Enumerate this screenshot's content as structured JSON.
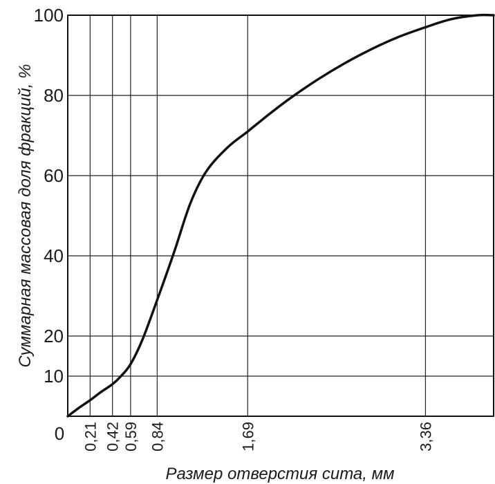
{
  "chart_data": {
    "type": "line",
    "title": "",
    "xlabel": "Размер отверстия сита, мм",
    "ylabel": "Суммарная массовая доля фракций, %",
    "x_origin_label": "0",
    "x_ticks": [
      {
        "value": 0.21,
        "label": "0,21"
      },
      {
        "value": 0.42,
        "label": "0,42"
      },
      {
        "value": 0.59,
        "label": "0,59"
      },
      {
        "value": 0.84,
        "label": "0,84"
      },
      {
        "value": 1.69,
        "label": "1,69"
      },
      {
        "value": 3.36,
        "label": "3,36"
      }
    ],
    "y_ticks": [
      {
        "value": 10,
        "label": "10"
      },
      {
        "value": 20,
        "label": "20"
      },
      {
        "value": 40,
        "label": "40"
      },
      {
        "value": 60,
        "label": "60"
      },
      {
        "value": 80,
        "label": "80"
      },
      {
        "value": 100,
        "label": "100"
      }
    ],
    "grid": true,
    "series": [
      {
        "points": [
          [
            0.0,
            0
          ],
          [
            0.1,
            2
          ],
          [
            0.21,
            4
          ],
          [
            0.31,
            6
          ],
          [
            0.42,
            8
          ],
          [
            0.5,
            10
          ],
          [
            0.59,
            13
          ],
          [
            0.7,
            19
          ],
          [
            0.84,
            29
          ],
          [
            1.0,
            41
          ],
          [
            1.15,
            53
          ],
          [
            1.3,
            61
          ],
          [
            1.5,
            67
          ],
          [
            1.69,
            71
          ],
          [
            1.9,
            75.5
          ],
          [
            2.1,
            79.5
          ],
          [
            2.35,
            84
          ],
          [
            2.6,
            88
          ],
          [
            2.85,
            91.5
          ],
          [
            3.1,
            94.5
          ],
          [
            3.36,
            97
          ],
          [
            3.6,
            99
          ],
          [
            3.85,
            100
          ],
          [
            4.0,
            100
          ]
        ]
      }
    ]
  }
}
